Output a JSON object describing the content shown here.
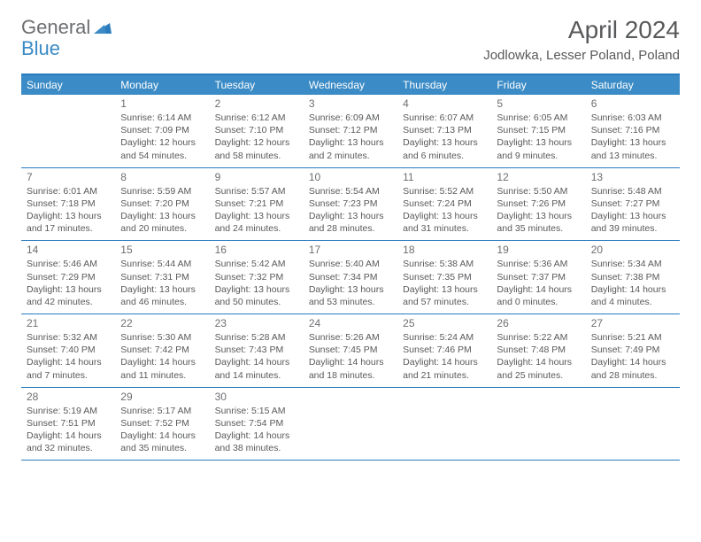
{
  "brand": {
    "text1": "General",
    "text2": "Blue"
  },
  "title": "April 2024",
  "location": "Jodlowka, Lesser Poland, Poland",
  "colors": {
    "header_bg": "#3b8bc6",
    "header_border": "#2b7bbd",
    "text_gray": "#58595b",
    "brand_gray": "#6d6e71",
    "brand_blue": "#3b8bc6",
    "white": "#ffffff"
  },
  "weekdays": [
    "Sunday",
    "Monday",
    "Tuesday",
    "Wednesday",
    "Thursday",
    "Friday",
    "Saturday"
  ],
  "weeks": [
    [
      null,
      {
        "n": "1",
        "sr": "Sunrise: 6:14 AM",
        "ss": "Sunset: 7:09 PM",
        "d1": "Daylight: 12 hours",
        "d2": "and 54 minutes."
      },
      {
        "n": "2",
        "sr": "Sunrise: 6:12 AM",
        "ss": "Sunset: 7:10 PM",
        "d1": "Daylight: 12 hours",
        "d2": "and 58 minutes."
      },
      {
        "n": "3",
        "sr": "Sunrise: 6:09 AM",
        "ss": "Sunset: 7:12 PM",
        "d1": "Daylight: 13 hours",
        "d2": "and 2 minutes."
      },
      {
        "n": "4",
        "sr": "Sunrise: 6:07 AM",
        "ss": "Sunset: 7:13 PM",
        "d1": "Daylight: 13 hours",
        "d2": "and 6 minutes."
      },
      {
        "n": "5",
        "sr": "Sunrise: 6:05 AM",
        "ss": "Sunset: 7:15 PM",
        "d1": "Daylight: 13 hours",
        "d2": "and 9 minutes."
      },
      {
        "n": "6",
        "sr": "Sunrise: 6:03 AM",
        "ss": "Sunset: 7:16 PM",
        "d1": "Daylight: 13 hours",
        "d2": "and 13 minutes."
      }
    ],
    [
      {
        "n": "7",
        "sr": "Sunrise: 6:01 AM",
        "ss": "Sunset: 7:18 PM",
        "d1": "Daylight: 13 hours",
        "d2": "and 17 minutes."
      },
      {
        "n": "8",
        "sr": "Sunrise: 5:59 AM",
        "ss": "Sunset: 7:20 PM",
        "d1": "Daylight: 13 hours",
        "d2": "and 20 minutes."
      },
      {
        "n": "9",
        "sr": "Sunrise: 5:57 AM",
        "ss": "Sunset: 7:21 PM",
        "d1": "Daylight: 13 hours",
        "d2": "and 24 minutes."
      },
      {
        "n": "10",
        "sr": "Sunrise: 5:54 AM",
        "ss": "Sunset: 7:23 PM",
        "d1": "Daylight: 13 hours",
        "d2": "and 28 minutes."
      },
      {
        "n": "11",
        "sr": "Sunrise: 5:52 AM",
        "ss": "Sunset: 7:24 PM",
        "d1": "Daylight: 13 hours",
        "d2": "and 31 minutes."
      },
      {
        "n": "12",
        "sr": "Sunrise: 5:50 AM",
        "ss": "Sunset: 7:26 PM",
        "d1": "Daylight: 13 hours",
        "d2": "and 35 minutes."
      },
      {
        "n": "13",
        "sr": "Sunrise: 5:48 AM",
        "ss": "Sunset: 7:27 PM",
        "d1": "Daylight: 13 hours",
        "d2": "and 39 minutes."
      }
    ],
    [
      {
        "n": "14",
        "sr": "Sunrise: 5:46 AM",
        "ss": "Sunset: 7:29 PM",
        "d1": "Daylight: 13 hours",
        "d2": "and 42 minutes."
      },
      {
        "n": "15",
        "sr": "Sunrise: 5:44 AM",
        "ss": "Sunset: 7:31 PM",
        "d1": "Daylight: 13 hours",
        "d2": "and 46 minutes."
      },
      {
        "n": "16",
        "sr": "Sunrise: 5:42 AM",
        "ss": "Sunset: 7:32 PM",
        "d1": "Daylight: 13 hours",
        "d2": "and 50 minutes."
      },
      {
        "n": "17",
        "sr": "Sunrise: 5:40 AM",
        "ss": "Sunset: 7:34 PM",
        "d1": "Daylight: 13 hours",
        "d2": "and 53 minutes."
      },
      {
        "n": "18",
        "sr": "Sunrise: 5:38 AM",
        "ss": "Sunset: 7:35 PM",
        "d1": "Daylight: 13 hours",
        "d2": "and 57 minutes."
      },
      {
        "n": "19",
        "sr": "Sunrise: 5:36 AM",
        "ss": "Sunset: 7:37 PM",
        "d1": "Daylight: 14 hours",
        "d2": "and 0 minutes."
      },
      {
        "n": "20",
        "sr": "Sunrise: 5:34 AM",
        "ss": "Sunset: 7:38 PM",
        "d1": "Daylight: 14 hours",
        "d2": "and 4 minutes."
      }
    ],
    [
      {
        "n": "21",
        "sr": "Sunrise: 5:32 AM",
        "ss": "Sunset: 7:40 PM",
        "d1": "Daylight: 14 hours",
        "d2": "and 7 minutes."
      },
      {
        "n": "22",
        "sr": "Sunrise: 5:30 AM",
        "ss": "Sunset: 7:42 PM",
        "d1": "Daylight: 14 hours",
        "d2": "and 11 minutes."
      },
      {
        "n": "23",
        "sr": "Sunrise: 5:28 AM",
        "ss": "Sunset: 7:43 PM",
        "d1": "Daylight: 14 hours",
        "d2": "and 14 minutes."
      },
      {
        "n": "24",
        "sr": "Sunrise: 5:26 AM",
        "ss": "Sunset: 7:45 PM",
        "d1": "Daylight: 14 hours",
        "d2": "and 18 minutes."
      },
      {
        "n": "25",
        "sr": "Sunrise: 5:24 AM",
        "ss": "Sunset: 7:46 PM",
        "d1": "Daylight: 14 hours",
        "d2": "and 21 minutes."
      },
      {
        "n": "26",
        "sr": "Sunrise: 5:22 AM",
        "ss": "Sunset: 7:48 PM",
        "d1": "Daylight: 14 hours",
        "d2": "and 25 minutes."
      },
      {
        "n": "27",
        "sr": "Sunrise: 5:21 AM",
        "ss": "Sunset: 7:49 PM",
        "d1": "Daylight: 14 hours",
        "d2": "and 28 minutes."
      }
    ],
    [
      {
        "n": "28",
        "sr": "Sunrise: 5:19 AM",
        "ss": "Sunset: 7:51 PM",
        "d1": "Daylight: 14 hours",
        "d2": "and 32 minutes."
      },
      {
        "n": "29",
        "sr": "Sunrise: 5:17 AM",
        "ss": "Sunset: 7:52 PM",
        "d1": "Daylight: 14 hours",
        "d2": "and 35 minutes."
      },
      {
        "n": "30",
        "sr": "Sunrise: 5:15 AM",
        "ss": "Sunset: 7:54 PM",
        "d1": "Daylight: 14 hours",
        "d2": "and 38 minutes."
      },
      null,
      null,
      null,
      null
    ]
  ]
}
